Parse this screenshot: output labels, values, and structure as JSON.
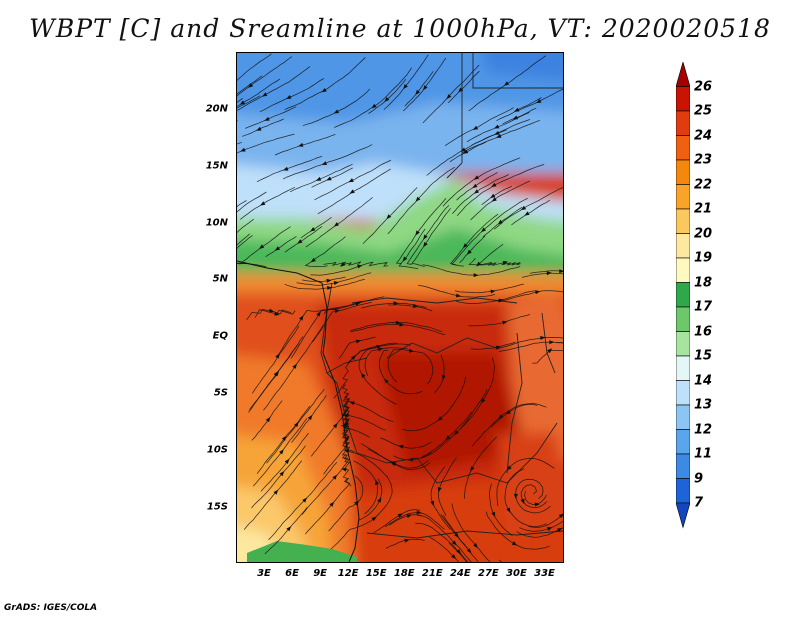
{
  "title": "WBPT [C] and Sreamline at 1000hPa, VT: 2020020518",
  "credit": "GrADS: IGES/COLA",
  "axes": {
    "lat_labels": [
      {
        "text": "20N",
        "lat": 20
      },
      {
        "text": "15N",
        "lat": 15
      },
      {
        "text": "10N",
        "lat": 10
      },
      {
        "text": "5N",
        "lat": 5
      },
      {
        "text": "EQ",
        "lat": 0
      },
      {
        "text": "5S",
        "lat": -5
      },
      {
        "text": "10S",
        "lat": -10
      },
      {
        "text": "15S",
        "lat": -15
      }
    ],
    "lon_labels": [
      {
        "text": "3E",
        "lon": 3
      },
      {
        "text": "6E",
        "lon": 6
      },
      {
        "text": "9E",
        "lon": 9
      },
      {
        "text": "12E",
        "lon": 12
      },
      {
        "text": "15E",
        "lon": 15
      },
      {
        "text": "18E",
        "lon": 18
      },
      {
        "text": "21E",
        "lon": 21
      },
      {
        "text": "24E",
        "lon": 24
      },
      {
        "text": "27E",
        "lon": 27
      },
      {
        "text": "30E",
        "lon": 30
      },
      {
        "text": "33E",
        "lon": 33
      }
    ]
  },
  "colorbar": {
    "labels": [
      "26",
      "25",
      "24",
      "23",
      "22",
      "21",
      "20",
      "19",
      "18",
      "17",
      "16",
      "15",
      "14",
      "13",
      "12",
      "11",
      "9",
      "7"
    ],
    "colors": [
      "#a50000",
      "#c81400",
      "#e03c10",
      "#f06010",
      "#f5880c",
      "#f8a428",
      "#fbc860",
      "#fde8a0",
      "#fff8c0",
      "#2ea84a",
      "#6cc86a",
      "#a8e4a0",
      "#e4f6f6",
      "#bfe0fa",
      "#8cc4f4",
      "#5aa6ec",
      "#3c8ae4",
      "#1e64d8",
      "#1446c0"
    ]
  }
}
